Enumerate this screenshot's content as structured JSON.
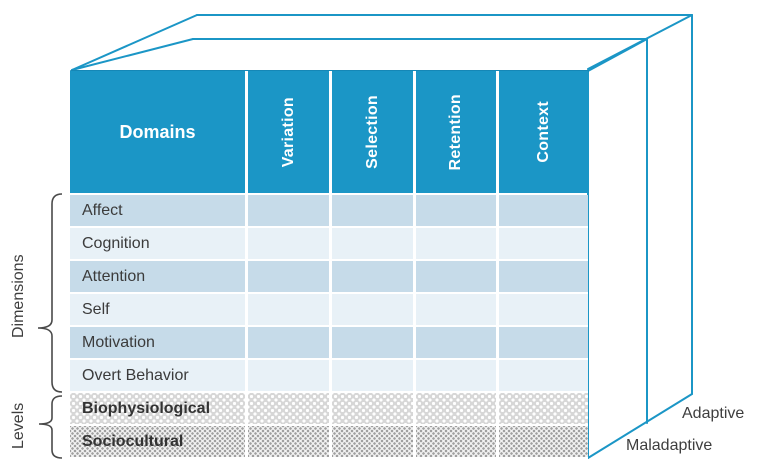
{
  "table": {
    "header": {
      "domains": "Domains",
      "process_columns": [
        "Variation",
        "Selection",
        "Retention",
        "Context"
      ]
    },
    "rows": [
      {
        "label": "Affect",
        "group": "dimensions"
      },
      {
        "label": "Cognition",
        "group": "dimensions"
      },
      {
        "label": "Attention",
        "group": "dimensions"
      },
      {
        "label": "Self",
        "group": "dimensions"
      },
      {
        "label": "Motivation",
        "group": "dimensions"
      },
      {
        "label": "Overt Behavior",
        "group": "dimensions"
      },
      {
        "label": "Biophysiological",
        "group": "levels"
      },
      {
        "label": "Sociocultural",
        "group": "levels"
      }
    ]
  },
  "axis_labels": {
    "dimensions": "Dimensions",
    "levels": "Levels",
    "adaptive": "Adaptive",
    "maladaptive": "Maladaptive"
  },
  "colors": {
    "teal": "#1b96c6",
    "band_dark": "#c6dbe9",
    "band_light": "#e8f1f7",
    "bio_gray": "#d7d7d7",
    "socio_dot": "#a0a0a0",
    "text_dark": "#3b3b3b",
    "brace": "#4a4a4a"
  }
}
